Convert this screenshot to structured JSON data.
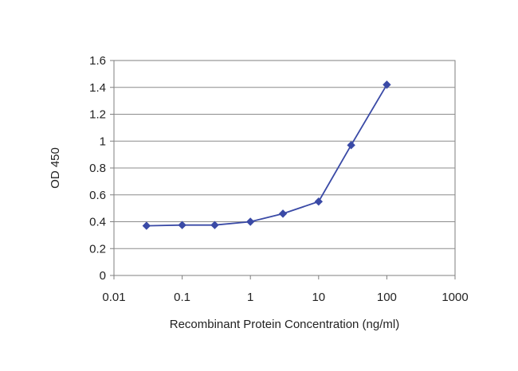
{
  "chart_data": {
    "type": "line",
    "title": "",
    "xlabel": "Recombinant Protein Concentration (ng/ml)",
    "ylabel": "OD 450",
    "x_scale": "log",
    "xlim": [
      0.01,
      1000
    ],
    "ylim": [
      0,
      1.6
    ],
    "x_ticks": [
      "0.01",
      "0.1",
      "1",
      "10",
      "100",
      "1000"
    ],
    "y_ticks": [
      "0",
      "0.2",
      "0.4",
      "0.6",
      "0.8",
      "1",
      "1.2",
      "1.4",
      "1.6"
    ],
    "grid": true,
    "legend": "none",
    "series": [
      {
        "color": "#3a4aa6",
        "marker": "diamond",
        "x": [
          0.03,
          0.1,
          0.3,
          1,
          3,
          10,
          30,
          100
        ],
        "y": [
          0.37,
          0.375,
          0.375,
          0.4,
          0.46,
          0.55,
          0.97,
          1.42
        ]
      }
    ]
  }
}
